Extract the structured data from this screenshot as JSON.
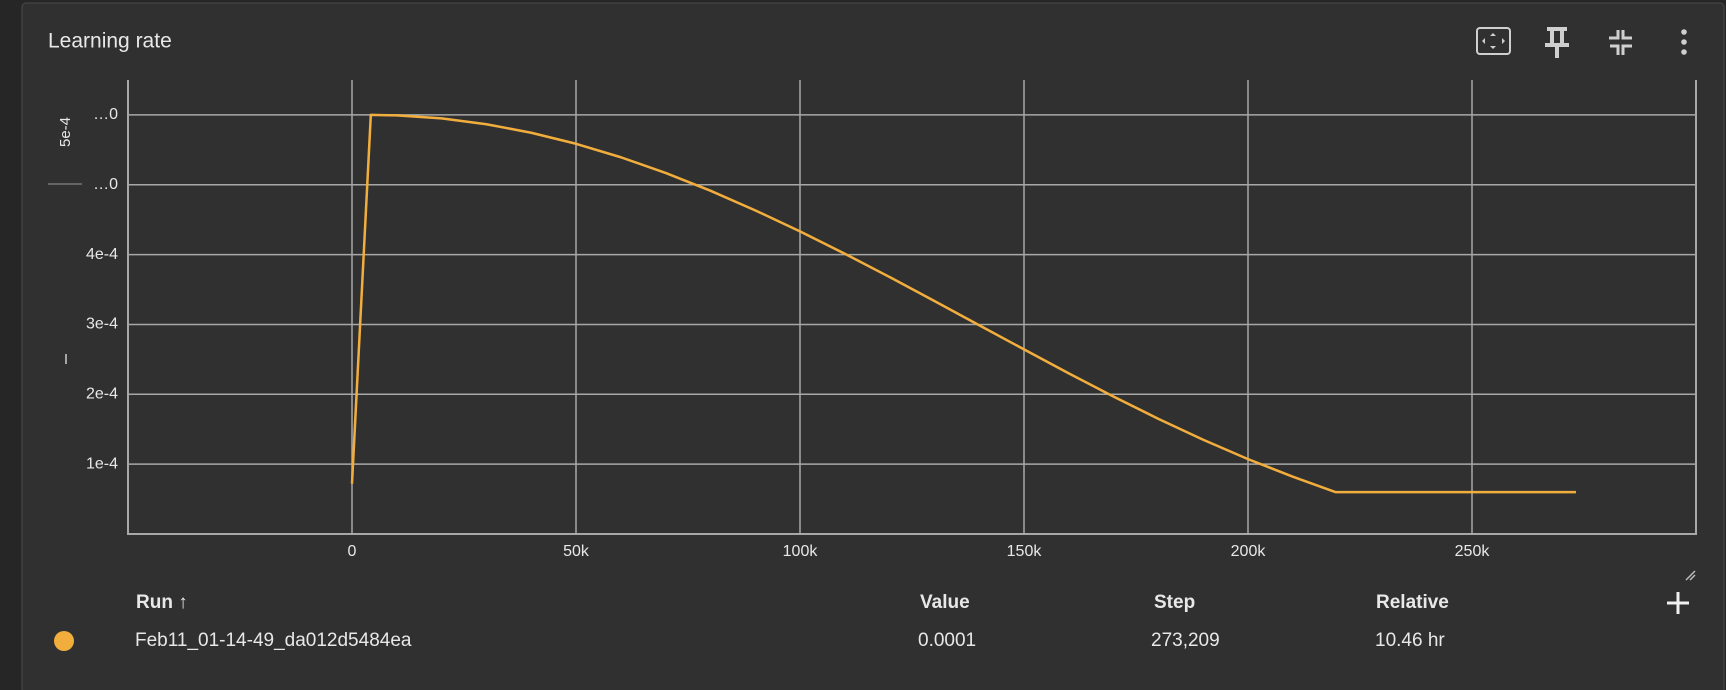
{
  "panel": {
    "title": "Learning rate"
  },
  "chart_data": {
    "type": "line",
    "x": [
      0,
      4200,
      10000,
      20000,
      30000,
      40000,
      50000,
      60000,
      70000,
      80000,
      90000,
      100000,
      110000,
      120000,
      130000,
      140000,
      150000,
      160000,
      170000,
      180000,
      190000,
      200000,
      210000,
      219500,
      273209
    ],
    "series": [
      {
        "name": "Feb11_01-14-49_da012d5484ea",
        "color": "#f2ae3d",
        "values": [
          7.2e-05,
          0.0006,
          0.0005993,
          0.000595,
          0.0005867,
          0.0005745,
          0.0005587,
          0.0005394,
          0.0005169,
          0.0004915,
          0.0004634,
          0.0004333,
          0.0004013,
          0.0003679,
          0.0003336,
          0.0002989,
          0.0002643,
          0.00023,
          0.0001967,
          0.0001649,
          0.0001349,
          0.0001072,
          8.21e-05,
          6e-05,
          6e-05
        ]
      }
    ],
    "xlim": [
      -50000,
      300000
    ],
    "xticks": [
      {
        "value": 0,
        "label": "0"
      },
      {
        "value": 50000,
        "label": "50k"
      },
      {
        "value": 100000,
        "label": "100k"
      },
      {
        "value": 150000,
        "label": "150k"
      },
      {
        "value": 200000,
        "label": "200k"
      },
      {
        "value": 250000,
        "label": "250k"
      }
    ],
    "ylim": [
      0,
      0.00065
    ],
    "yticks": [
      {
        "value": 0.0001,
        "label": "1e-4"
      },
      {
        "value": 0.0002,
        "label": "2e-4"
      },
      {
        "value": 0.0003,
        "label": "3e-4"
      },
      {
        "value": 0.0004,
        "label": "4e-4"
      },
      {
        "value": 0.0005,
        "label": "…0"
      },
      {
        "value": 0.0006,
        "label": "…0"
      }
    ],
    "y_annotation": "5e-4",
    "grid": true
  },
  "table": {
    "headers": [
      "Run ↑",
      "Value",
      "Step",
      "Relative"
    ],
    "row": {
      "value": "0.0001",
      "step": "273,209",
      "relative": "10.46 hr"
    }
  }
}
